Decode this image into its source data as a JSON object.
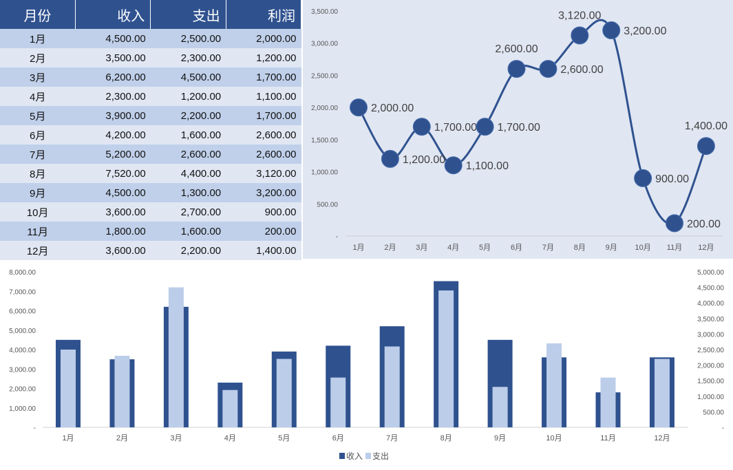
{
  "table": {
    "headers": [
      "月份",
      "收入",
      "支出",
      "利润"
    ],
    "rows": [
      [
        "1月",
        "4,500.00",
        "2,500.00",
        "2,000.00"
      ],
      [
        "2月",
        "3,500.00",
        "2,300.00",
        "1,200.00"
      ],
      [
        "3月",
        "6,200.00",
        "4,500.00",
        "1,700.00"
      ],
      [
        "4月",
        "2,300.00",
        "1,200.00",
        "1,100.00"
      ],
      [
        "5月",
        "3,900.00",
        "2,200.00",
        "1,700.00"
      ],
      [
        "6月",
        "4,200.00",
        "1,600.00",
        "2,600.00"
      ],
      [
        "7月",
        "5,200.00",
        "2,600.00",
        "2,600.00"
      ],
      [
        "8月",
        "7,520.00",
        "4,400.00",
        "3,120.00"
      ],
      [
        "9月",
        "4,500.00",
        "1,300.00",
        "3,200.00"
      ],
      [
        "10月",
        "3,600.00",
        "2,700.00",
        "900.00"
      ],
      [
        "11月",
        "1,800.00",
        "1,600.00",
        "200.00"
      ],
      [
        "12月",
        "3,600.00",
        "2,200.00",
        "1,400.00"
      ]
    ]
  },
  "chart_data": [
    {
      "type": "line",
      "title": "",
      "categories": [
        "1月",
        "2月",
        "3月",
        "4月",
        "5月",
        "6月",
        "7月",
        "8月",
        "9月",
        "10月",
        "11月",
        "12月"
      ],
      "series": [
        {
          "name": "利润",
          "values": [
            2000,
            1200,
            1700,
            1100,
            1700,
            2600,
            2600,
            3120,
            3200,
            900,
            200,
            1400
          ]
        }
      ],
      "data_labels": [
        "2,000.00",
        "1,200.00",
        "1,700.00",
        "1,100.00",
        "1,700.00",
        "2,600.00",
        "2,600.00",
        "3,120.00",
        "3,200.00",
        "900.00",
        "200.00",
        "1,400.00"
      ],
      "ylim": [
        0,
        3500
      ],
      "yticks": [
        "-",
        "500.00",
        "1,000.00",
        "1,500.00",
        "2,000.00",
        "2,500.00",
        "3,000.00",
        "3,500.00"
      ],
      "smooth": true,
      "color": "#2f528f"
    },
    {
      "type": "bar",
      "title": "",
      "categories": [
        "1月",
        "2月",
        "3月",
        "4月",
        "5月",
        "6月",
        "7月",
        "8月",
        "9月",
        "10月",
        "11月",
        "12月"
      ],
      "series": [
        {
          "name": "收入",
          "axis": "left",
          "values": [
            4500,
            3500,
            6200,
            2300,
            3900,
            4200,
            5200,
            7520,
            4500,
            3600,
            1800,
            3600
          ],
          "color": "#2f528f"
        },
        {
          "name": "支出",
          "axis": "right",
          "values": [
            2500,
            2300,
            4500,
            1200,
            2200,
            1600,
            2600,
            4400,
            1300,
            2700,
            1600,
            2200
          ],
          "color": "#bccde9"
        }
      ],
      "ylim_left": [
        0,
        8000
      ],
      "ylim_right": [
        0,
        5000
      ],
      "yticks_left": [
        "-",
        "1,000.00",
        "2,000.00",
        "3,000.00",
        "4,000.00",
        "5,000.00",
        "6,000.00",
        "7,000.00",
        "8,000.00"
      ],
      "yticks_right": [
        "-",
        "500.00",
        "1,000.00",
        "1,500.00",
        "2,000.00",
        "2,500.00",
        "3,000.00",
        "3,500.00",
        "4,000.00",
        "4,500.00",
        "5,000.00"
      ],
      "legend": "bottom"
    }
  ]
}
